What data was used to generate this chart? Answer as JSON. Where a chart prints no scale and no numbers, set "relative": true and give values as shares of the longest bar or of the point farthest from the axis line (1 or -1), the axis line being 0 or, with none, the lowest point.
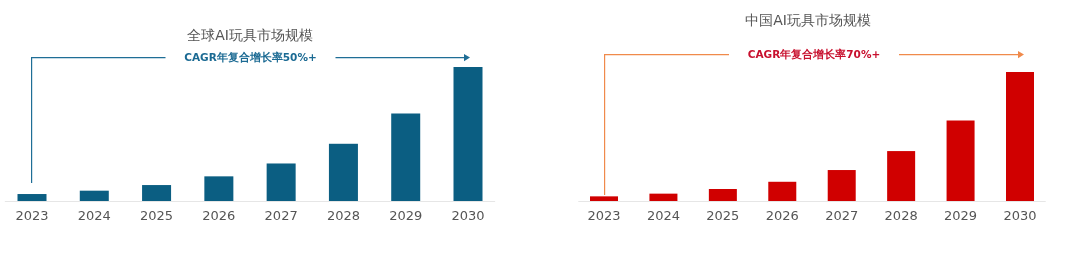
{
  "chart_data": [
    {
      "type": "bar",
      "title": "全球AI玩具市场规模",
      "categories": [
        "2023",
        "2024",
        "2025",
        "2026",
        "2027",
        "2028",
        "2029",
        "2030"
      ],
      "relative": true,
      "color": "#0b5e82",
      "values": [
        0.052,
        0.077,
        0.119,
        0.184,
        0.28,
        0.427,
        0.653,
        1
      ],
      "annotations": [
        "CAGR年复合增长率50%+"
      ]
    },
    {
      "type": "bar",
      "title": "中国AI玩具市场规模",
      "categories": [
        "2023",
        "2024",
        "2025",
        "2026",
        "2027",
        "2028",
        "2029",
        "2030"
      ],
      "relative": true,
      "color": "#d00000",
      "values": [
        0.036,
        0.057,
        0.093,
        0.149,
        0.24,
        0.387,
        0.624,
        1
      ],
      "annotations": [
        "CAGR年复合增长率70%+"
      ]
    }
  ]
}
